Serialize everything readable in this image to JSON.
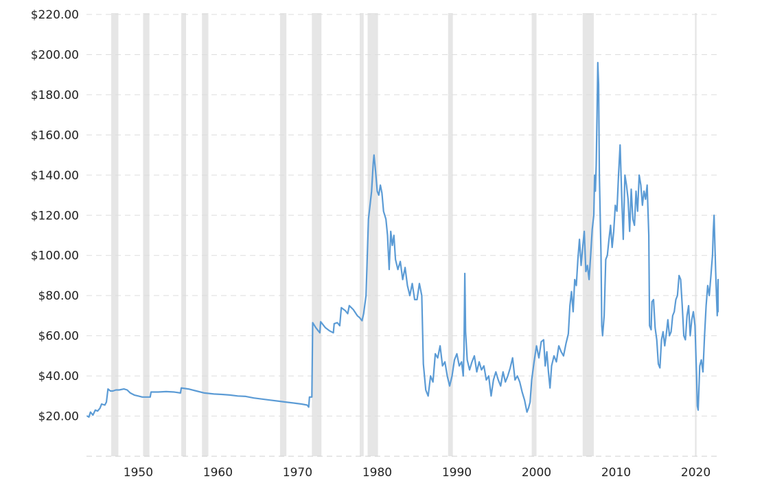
{
  "chart_data": {
    "type": "line",
    "title": "",
    "xlabel": "",
    "ylabel": "",
    "xlim": [
      1943.5,
      2022.8
    ],
    "ylim": [
      0,
      220
    ],
    "x_ticks": [
      1950,
      1960,
      1970,
      1980,
      1990,
      2000,
      2010,
      2020
    ],
    "y_ticks": [
      20,
      40,
      60,
      80,
      100,
      120,
      140,
      160,
      180,
      200,
      220
    ],
    "y_tick_labels": [
      "$20.00",
      "$40.00",
      "$60.00",
      "$80.00",
      "$100.00",
      "$120.00",
      "$140.00",
      "$160.00",
      "$180.00",
      "$200.00",
      "$220.00"
    ],
    "grid": true,
    "line_color": "#5b9bd5",
    "recession_color": "#e6e6e6",
    "recessions": [
      [
        1946.6,
        1947.5
      ],
      [
        1950.6,
        1951.4
      ],
      [
        1955.4,
        1956.0
      ],
      [
        1958.0,
        1958.8
      ],
      [
        1967.8,
        1968.6
      ],
      [
        1971.8,
        1973.0
      ],
      [
        1977.8,
        1978.3
      ],
      [
        1978.8,
        1980.1
      ],
      [
        1988.9,
        1989.5
      ],
      [
        1999.4,
        2000.0
      ],
      [
        2005.8,
        2007.2
      ],
      [
        2019.9,
        2020.1
      ]
    ],
    "series": [
      {
        "values": [
          [
            1943.6,
            20
          ],
          [
            1943.8,
            19.5
          ],
          [
            1944.0,
            22
          ],
          [
            1944.3,
            20.5
          ],
          [
            1944.6,
            23
          ],
          [
            1944.9,
            22.5
          ],
          [
            1945.2,
            24
          ],
          [
            1945.4,
            26
          ],
          [
            1945.8,
            25.5
          ],
          [
            1946.0,
            27
          ],
          [
            1946.2,
            33.5
          ],
          [
            1946.5,
            32.5
          ],
          [
            1946.8,
            32.5
          ],
          [
            1947.2,
            33
          ],
          [
            1947.6,
            33
          ],
          [
            1948.2,
            33.5
          ],
          [
            1948.6,
            33
          ],
          [
            1949.0,
            31.5
          ],
          [
            1949.5,
            30.5
          ],
          [
            1950.0,
            30
          ],
          [
            1950.5,
            29.5
          ],
          [
            1951.5,
            29.5
          ],
          [
            1951.6,
            32
          ],
          [
            1952.5,
            32
          ],
          [
            1953.5,
            32.2
          ],
          [
            1954.5,
            32
          ],
          [
            1955.3,
            31.5
          ],
          [
            1955.4,
            34
          ],
          [
            1956.3,
            33.5
          ],
          [
            1957.3,
            32.5
          ],
          [
            1958.3,
            31.5
          ],
          [
            1959.5,
            31
          ],
          [
            1960.5,
            30.8
          ],
          [
            1961.5,
            30.5
          ],
          [
            1962.5,
            30
          ],
          [
            1963.5,
            29.8
          ],
          [
            1964.5,
            29
          ],
          [
            1965.5,
            28.5
          ],
          [
            1966.5,
            28
          ],
          [
            1967.5,
            27.5
          ],
          [
            1968.5,
            27
          ],
          [
            1969.5,
            26.5
          ],
          [
            1970.5,
            26
          ],
          [
            1971.2,
            25.5
          ],
          [
            1971.4,
            24.5
          ],
          [
            1971.5,
            29.5
          ],
          [
            1971.8,
            29.5
          ],
          [
            1971.9,
            66.5
          ],
          [
            1972.3,
            64
          ],
          [
            1972.8,
            61.5
          ],
          [
            1972.9,
            67
          ],
          [
            1973.5,
            64
          ],
          [
            1974.0,
            62.5
          ],
          [
            1974.5,
            61.5
          ],
          [
            1974.6,
            66
          ],
          [
            1975.0,
            66.5
          ],
          [
            1975.3,
            65
          ],
          [
            1975.5,
            74
          ],
          [
            1976.0,
            72.5
          ],
          [
            1976.3,
            71
          ],
          [
            1976.5,
            75
          ],
          [
            1977.0,
            73
          ],
          [
            1977.5,
            70
          ],
          [
            1977.8,
            69
          ],
          [
            1978.1,
            67.5
          ],
          [
            1978.3,
            71
          ],
          [
            1978.6,
            80
          ],
          [
            1978.9,
            118
          ],
          [
            1979.1,
            125
          ],
          [
            1979.3,
            132
          ],
          [
            1979.5,
            146
          ],
          [
            1979.6,
            150
          ],
          [
            1979.8,
            142
          ],
          [
            1980.0,
            132
          ],
          [
            1980.2,
            130
          ],
          [
            1980.4,
            135
          ],
          [
            1980.6,
            131
          ],
          [
            1980.8,
            122
          ],
          [
            1981.1,
            118
          ],
          [
            1981.3,
            110
          ],
          [
            1981.5,
            93
          ],
          [
            1981.7,
            112
          ],
          [
            1981.9,
            105
          ],
          [
            1982.1,
            110
          ],
          [
            1982.3,
            98
          ],
          [
            1982.6,
            93
          ],
          [
            1982.9,
            97
          ],
          [
            1983.2,
            88
          ],
          [
            1983.5,
            94
          ],
          [
            1983.8,
            85
          ],
          [
            1984.1,
            80
          ],
          [
            1984.4,
            86
          ],
          [
            1984.7,
            78
          ],
          [
            1985.0,
            78
          ],
          [
            1985.3,
            86
          ],
          [
            1985.6,
            80
          ],
          [
            1985.8,
            46
          ],
          [
            1986.1,
            33
          ],
          [
            1986.4,
            30
          ],
          [
            1986.7,
            40
          ],
          [
            1987.0,
            37
          ],
          [
            1987.3,
            51
          ],
          [
            1987.6,
            49
          ],
          [
            1987.9,
            55
          ],
          [
            1988.2,
            45
          ],
          [
            1988.5,
            47
          ],
          [
            1988.8,
            40
          ],
          [
            1989.1,
            35
          ],
          [
            1989.4,
            40
          ],
          [
            1989.7,
            48
          ],
          [
            1990.0,
            51
          ],
          [
            1990.3,
            45
          ],
          [
            1990.6,
            47
          ],
          [
            1990.8,
            40
          ],
          [
            1990.9,
            53
          ],
          [
            1991.0,
            91
          ],
          [
            1991.1,
            62
          ],
          [
            1991.3,
            48
          ],
          [
            1991.6,
            43
          ],
          [
            1991.9,
            47
          ],
          [
            1992.2,
            50
          ],
          [
            1992.5,
            42
          ],
          [
            1992.8,
            47
          ],
          [
            1993.1,
            43
          ],
          [
            1993.4,
            45
          ],
          [
            1993.7,
            38
          ],
          [
            1994.0,
            40
          ],
          [
            1994.3,
            30
          ],
          [
            1994.6,
            38
          ],
          [
            1994.9,
            42
          ],
          [
            1995.2,
            38
          ],
          [
            1995.5,
            35
          ],
          [
            1995.8,
            42
          ],
          [
            1996.1,
            37
          ],
          [
            1996.4,
            40
          ],
          [
            1996.7,
            44
          ],
          [
            1997.0,
            49
          ],
          [
            1997.3,
            38
          ],
          [
            1997.6,
            40
          ],
          [
            1997.9,
            37
          ],
          [
            1998.2,
            32
          ],
          [
            1998.5,
            28
          ],
          [
            1998.8,
            22
          ],
          [
            1999.0,
            24
          ],
          [
            1999.2,
            27
          ],
          [
            1999.4,
            38
          ],
          [
            1999.7,
            47
          ],
          [
            2000.0,
            55
          ],
          [
            2000.3,
            49
          ],
          [
            2000.6,
            57
          ],
          [
            2000.9,
            58
          ],
          [
            2001.1,
            45
          ],
          [
            2001.3,
            52
          ],
          [
            2001.5,
            42
          ],
          [
            2001.7,
            34
          ],
          [
            2001.9,
            45
          ],
          [
            2002.2,
            50
          ],
          [
            2002.5,
            47
          ],
          [
            2002.8,
            55
          ],
          [
            2003.1,
            52
          ],
          [
            2003.4,
            50
          ],
          [
            2003.7,
            56
          ],
          [
            2004.0,
            61
          ],
          [
            2004.2,
            75
          ],
          [
            2004.4,
            82
          ],
          [
            2004.6,
            72
          ],
          [
            2004.8,
            88
          ],
          [
            2005.0,
            85
          ],
          [
            2005.2,
            98
          ],
          [
            2005.4,
            108
          ],
          [
            2005.6,
            95
          ],
          [
            2005.8,
            104
          ],
          [
            2006.0,
            112
          ],
          [
            2006.2,
            92
          ],
          [
            2006.4,
            95
          ],
          [
            2006.6,
            88
          ],
          [
            2006.8,
            100
          ],
          [
            2007.0,
            113
          ],
          [
            2007.2,
            120
          ],
          [
            2007.3,
            140
          ],
          [
            2007.4,
            132
          ],
          [
            2007.5,
            145
          ],
          [
            2007.6,
            170
          ],
          [
            2007.7,
            196
          ],
          [
            2007.8,
            185
          ],
          [
            2007.9,
            140
          ],
          [
            2008.1,
            100
          ],
          [
            2008.2,
            65
          ],
          [
            2008.3,
            60
          ],
          [
            2008.5,
            70
          ],
          [
            2008.7,
            98
          ],
          [
            2008.9,
            100
          ],
          [
            2009.1,
            108
          ],
          [
            2009.3,
            115
          ],
          [
            2009.5,
            104
          ],
          [
            2009.7,
            112
          ],
          [
            2009.9,
            125
          ],
          [
            2010.1,
            122
          ],
          [
            2010.3,
            140
          ],
          [
            2010.5,
            155
          ],
          [
            2010.7,
            130
          ],
          [
            2010.9,
            108
          ],
          [
            2011.1,
            140
          ],
          [
            2011.3,
            135
          ],
          [
            2011.5,
            128
          ],
          [
            2011.7,
            112
          ],
          [
            2011.9,
            133
          ],
          [
            2012.1,
            118
          ],
          [
            2012.3,
            115
          ],
          [
            2012.5,
            132
          ],
          [
            2012.7,
            122
          ],
          [
            2012.9,
            140
          ],
          [
            2013.1,
            135
          ],
          [
            2013.3,
            125
          ],
          [
            2013.5,
            132
          ],
          [
            2013.7,
            128
          ],
          [
            2013.9,
            135
          ],
          [
            2014.1,
            110
          ],
          [
            2014.2,
            65
          ],
          [
            2014.4,
            63
          ],
          [
            2014.5,
            77
          ],
          [
            2014.7,
            78
          ],
          [
            2014.9,
            64
          ],
          [
            2015.1,
            58
          ],
          [
            2015.3,
            46
          ],
          [
            2015.5,
            44
          ],
          [
            2015.7,
            58
          ],
          [
            2015.9,
            62
          ],
          [
            2016.1,
            55
          ],
          [
            2016.3,
            61
          ],
          [
            2016.5,
            68
          ],
          [
            2016.7,
            60
          ],
          [
            2016.9,
            62
          ],
          [
            2017.1,
            70
          ],
          [
            2017.3,
            72
          ],
          [
            2017.5,
            78
          ],
          [
            2017.7,
            80
          ],
          [
            2017.9,
            90
          ],
          [
            2018.1,
            88
          ],
          [
            2018.3,
            75
          ],
          [
            2018.5,
            60
          ],
          [
            2018.7,
            58
          ],
          [
            2018.9,
            70
          ],
          [
            2019.1,
            75
          ],
          [
            2019.3,
            60
          ],
          [
            2019.5,
            68
          ],
          [
            2019.7,
            72
          ],
          [
            2019.9,
            65
          ],
          [
            2020.1,
            40
          ],
          [
            2020.2,
            25
          ],
          [
            2020.3,
            23
          ],
          [
            2020.5,
            45
          ],
          [
            2020.7,
            48
          ],
          [
            2020.9,
            42
          ],
          [
            2021.1,
            60
          ],
          [
            2021.3,
            75
          ],
          [
            2021.5,
            85
          ],
          [
            2021.7,
            80
          ],
          [
            2021.9,
            90
          ],
          [
            2022.0,
            95
          ],
          [
            2022.1,
            100
          ],
          [
            2022.2,
            112
          ],
          [
            2022.3,
            120
          ],
          [
            2022.4,
            105
          ],
          [
            2022.5,
            92
          ],
          [
            2022.6,
            80
          ],
          [
            2022.7,
            70
          ],
          [
            2022.8,
            88
          ],
          [
            2022.8,
            72
          ]
        ]
      }
    ]
  }
}
